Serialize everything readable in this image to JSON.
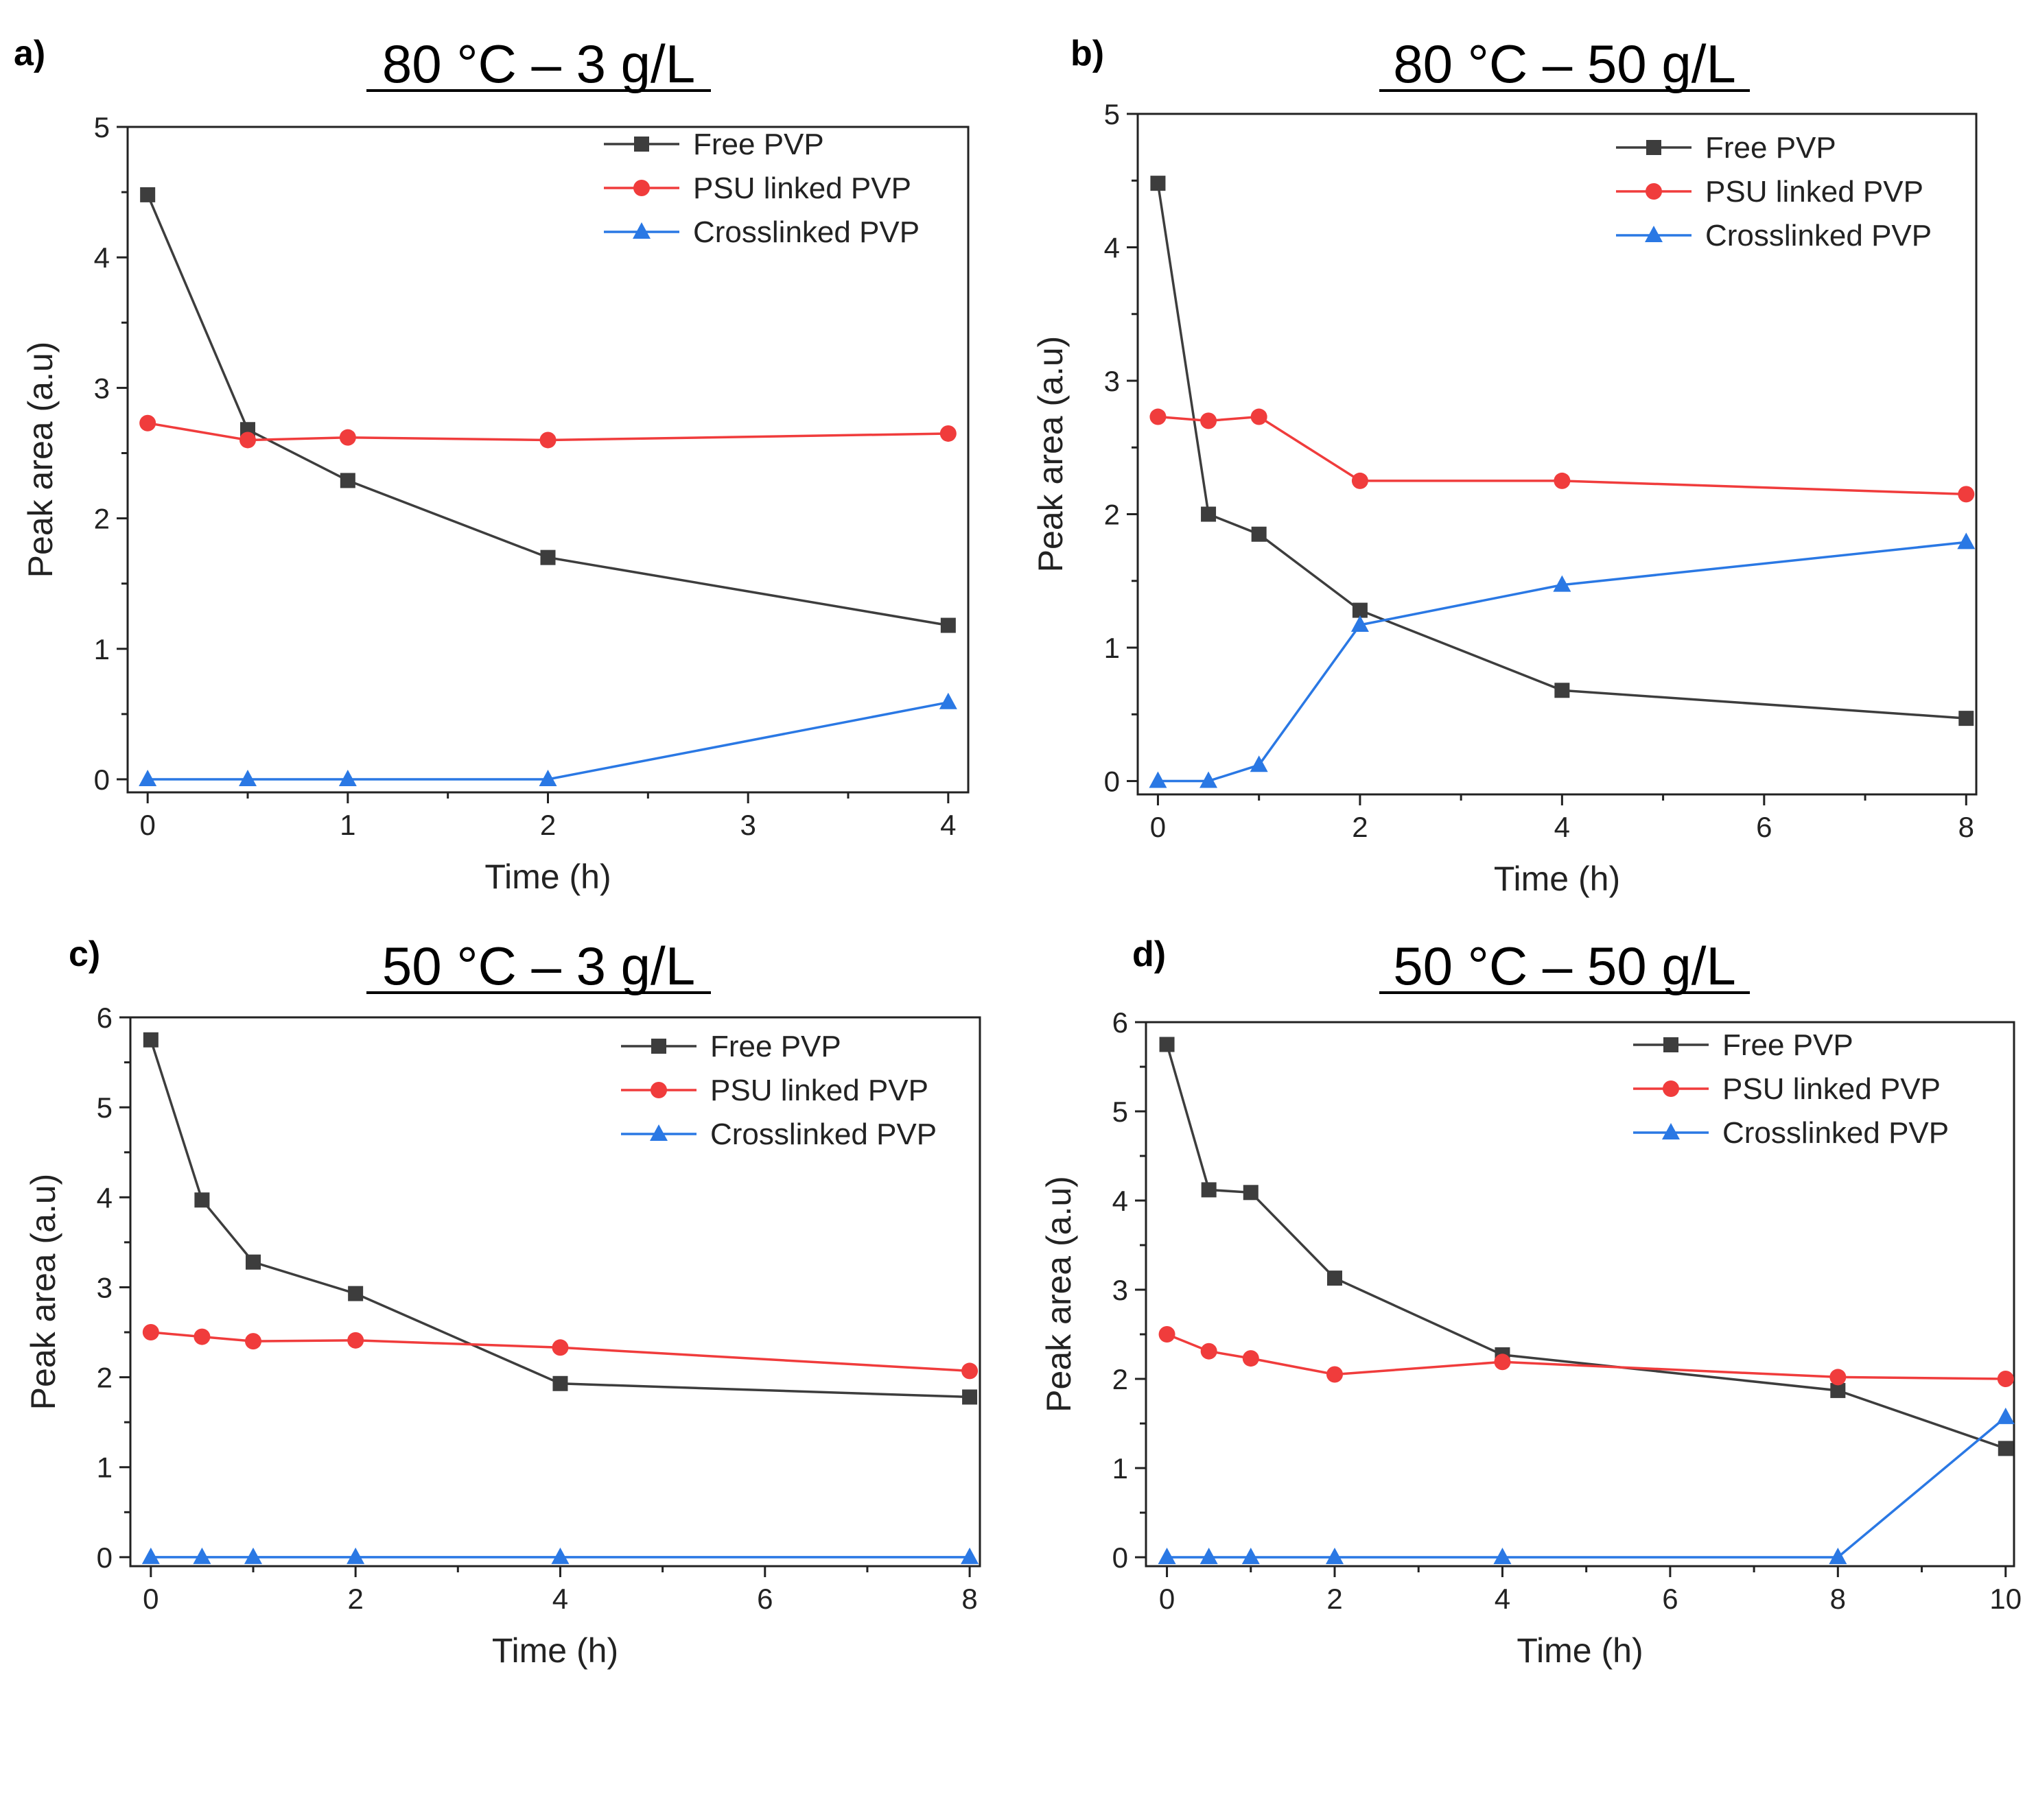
{
  "figure": {
    "series_colors": {
      "Free PVP": "#3d3d3d",
      "PSU linked PVP": "#f03c3c",
      "Crosslinked PVP": "#2a78e4"
    },
    "series_markers": {
      "Free PVP": "square",
      "PSU linked PVP": "circle",
      "Crosslinked PVP": "triangle"
    }
  },
  "chart_data": [
    {
      "panel": "a)",
      "type": "line",
      "title": "80 °C – 3 g/L",
      "xlabel": "Time (h)",
      "ylabel": "Peak area (a.u)",
      "xlim": [
        -0.1,
        4.1
      ],
      "ylim": [
        -0.1,
        5.0
      ],
      "xticks": [
        0,
        1,
        2,
        3,
        4
      ],
      "yticks": [
        0,
        1,
        2,
        3,
        4,
        5
      ],
      "legend_position": "top-right",
      "series": [
        {
          "name": "Free PVP",
          "x": [
            0,
            0.5,
            1,
            2,
            4
          ],
          "y": [
            4.48,
            2.68,
            2.29,
            1.7,
            1.18
          ]
        },
        {
          "name": "PSU linked PVP",
          "x": [
            0,
            0.5,
            1,
            2,
            4
          ],
          "y": [
            2.73,
            2.6,
            2.62,
            2.6,
            2.65
          ]
        },
        {
          "name": "Crosslinked PVP",
          "x": [
            0,
            0.5,
            1,
            2,
            4
          ],
          "y": [
            0,
            0,
            0,
            0,
            0.59
          ]
        }
      ]
    },
    {
      "panel": "b)",
      "type": "line",
      "title": "80 °C – 50 g/L",
      "xlabel": "Time (h)",
      "ylabel": "Peak area (a.u)",
      "xlim": [
        -0.2,
        8.1
      ],
      "ylim": [
        -0.1,
        5.0
      ],
      "xticks": [
        0,
        2,
        4,
        6,
        8
      ],
      "yticks": [
        0,
        1,
        2,
        3,
        4,
        5
      ],
      "legend_position": "top-right",
      "series": [
        {
          "name": "Free PVP",
          "x": [
            0,
            0.5,
            1,
            2,
            4,
            8
          ],
          "y": [
            4.48,
            2.0,
            1.85,
            1.28,
            0.68,
            0.47
          ]
        },
        {
          "name": "PSU linked PVP",
          "x": [
            0,
            0.5,
            1,
            2,
            4,
            8
          ],
          "y": [
            2.73,
            2.7,
            2.73,
            2.25,
            2.25,
            2.15
          ]
        },
        {
          "name": "Crosslinked PVP",
          "x": [
            0,
            0.5,
            1,
            2,
            4,
            8
          ],
          "y": [
            0,
            0,
            0.12,
            1.17,
            1.47,
            1.79
          ]
        }
      ]
    },
    {
      "panel": "c)",
      "type": "line",
      "title": "50 °C – 3 g/L",
      "xlabel": "Time (h)",
      "ylabel": "Peak area (a.u)",
      "xlim": [
        -0.2,
        8.1
      ],
      "ylim": [
        -0.1,
        6.0
      ],
      "xticks": [
        0,
        2,
        4,
        6,
        8
      ],
      "yticks": [
        0,
        1,
        2,
        3,
        4,
        5,
        6
      ],
      "legend_position": "top-right",
      "series": [
        {
          "name": "Free PVP",
          "x": [
            0,
            0.5,
            1,
            2,
            4,
            8
          ],
          "y": [
            5.75,
            3.97,
            3.28,
            2.93,
            1.93,
            1.78
          ]
        },
        {
          "name": "PSU linked PVP",
          "x": [
            0,
            0.5,
            1,
            2,
            4,
            8
          ],
          "y": [
            2.5,
            2.45,
            2.4,
            2.41,
            2.33,
            2.07
          ]
        },
        {
          "name": "Crosslinked PVP",
          "x": [
            0,
            0.5,
            1,
            2,
            4,
            8
          ],
          "y": [
            0,
            0,
            0,
            0,
            0,
            0
          ]
        }
      ]
    },
    {
      "panel": "d)",
      "type": "line",
      "title": "50 °C – 50 g/L",
      "xlabel": "Time (h)",
      "ylabel": "Peak area (a.u)",
      "xlim": [
        -0.25,
        10.1
      ],
      "ylim": [
        -0.1,
        6.0
      ],
      "xticks": [
        0,
        2,
        4,
        6,
        8,
        10
      ],
      "yticks": [
        0,
        1,
        2,
        3,
        4,
        5,
        6
      ],
      "legend_position": "top-right",
      "series": [
        {
          "name": "Free PVP",
          "x": [
            0,
            0.5,
            1,
            2,
            4,
            8,
            10
          ],
          "y": [
            5.75,
            4.12,
            4.09,
            3.13,
            2.27,
            1.87,
            1.22
          ]
        },
        {
          "name": "PSU linked PVP",
          "x": [
            0,
            0.5,
            1,
            2,
            4,
            8,
            10
          ],
          "y": [
            2.5,
            2.31,
            2.23,
            2.05,
            2.19,
            2.02,
            2.0
          ]
        },
        {
          "name": "Crosslinked PVP",
          "x": [
            0,
            0.5,
            1,
            2,
            4,
            8,
            10
          ],
          "y": [
            0,
            0,
            0,
            0,
            0,
            0,
            1.57
          ]
        }
      ]
    }
  ]
}
